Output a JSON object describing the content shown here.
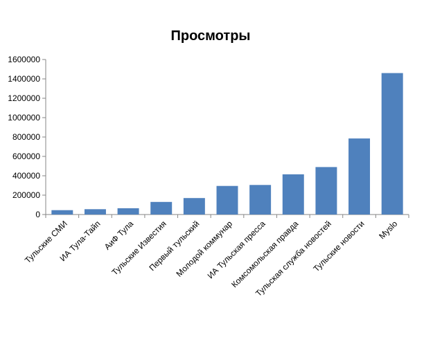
{
  "chart_data": {
    "type": "bar",
    "title": "Просмотры",
    "xlabel": "",
    "ylabel": "",
    "categories": [
      "Тульские СМИ",
      "ИА Тула-Тайп",
      "АиФ Тула",
      "Тульские Известия",
      "Первый тульский",
      "Молодой коммунар",
      "ИА Тульская пресса",
      "Комсомольская правда",
      "Тульская служба новостей",
      "Тульские новости",
      "Myslo"
    ],
    "values": [
      45000,
      55000,
      65000,
      130000,
      170000,
      295000,
      305000,
      415000,
      490000,
      785000,
      1460000
    ],
    "ylim": [
      0,
      1600000
    ],
    "yticks": [
      "0",
      "200000",
      "400000",
      "600000",
      "800000",
      "1000000",
      "1200000",
      "1400000",
      "1600000"
    ],
    "legend": "none",
    "grid": false,
    "colors": {
      "bar": "#4f81bd",
      "axis": "#868686"
    }
  }
}
